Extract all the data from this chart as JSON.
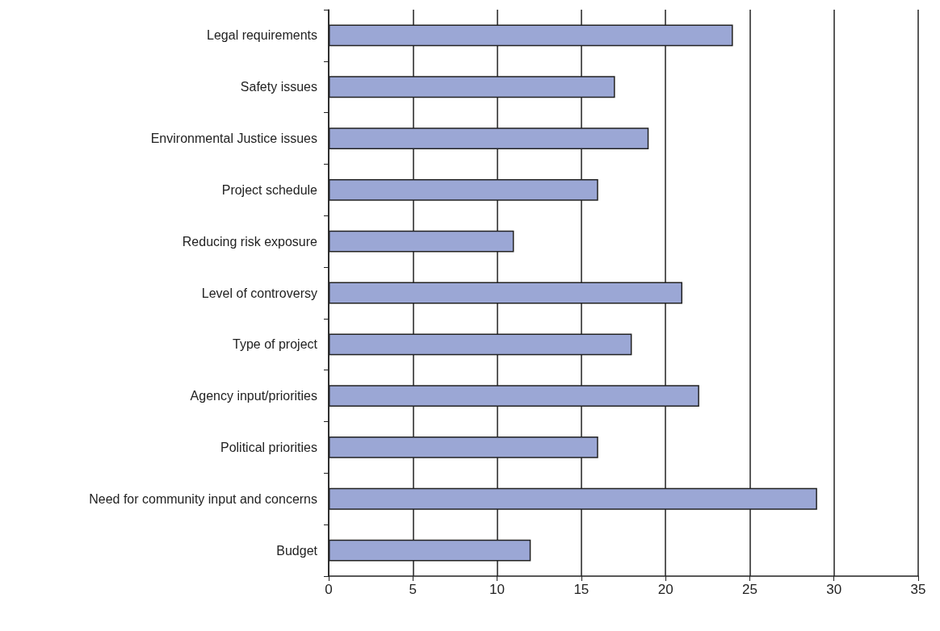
{
  "chart_data": {
    "type": "bar",
    "orientation": "horizontal",
    "categories": [
      "Legal requirements",
      "Safety issues",
      "Environmental Justice issues",
      "Project schedule",
      "Reducing risk exposure",
      "Level of controversy",
      "Type of project",
      "Agency input/priorities",
      "Political priorities",
      "Need for community input and concerns",
      "Budget"
    ],
    "values": [
      24,
      17,
      19,
      16,
      11,
      21,
      18,
      22,
      16,
      29,
      12
    ],
    "color": "#9ba7d5",
    "xlim": [
      0,
      35
    ],
    "xticks": [
      0,
      5,
      10,
      15,
      20,
      25,
      30,
      35
    ],
    "grid": "x"
  }
}
